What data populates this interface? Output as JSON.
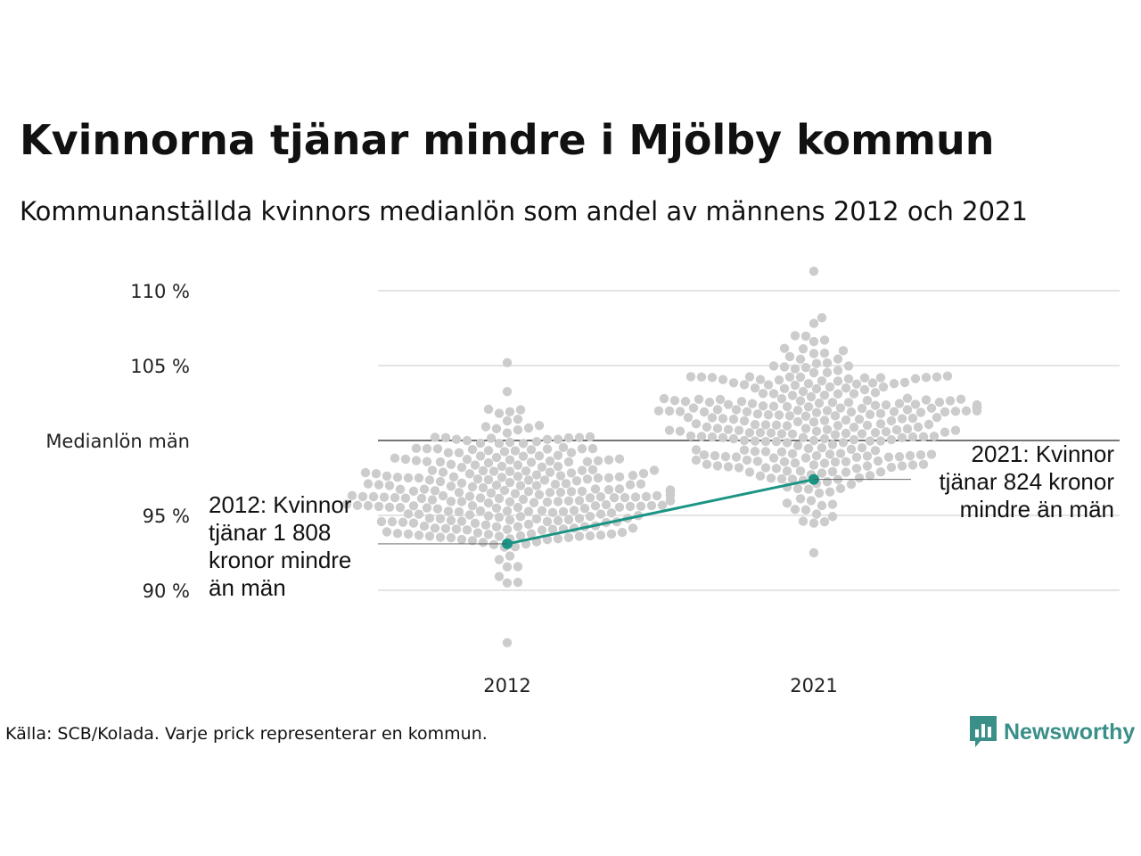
{
  "title": "Kvinnorna tjänar mindre i Mjölby kommun",
  "subtitle": "Kommunanställda kvinnors medianlön som andel av männens 2012 och 2021",
  "source": "Källa: SCB/Kolada. Varje prick representerar en kommun.",
  "logo": {
    "text": "Newsworthy",
    "icon": "newsworthy-bar-chart-icon",
    "color": "#3a8f88"
  },
  "chart_data": {
    "type": "scatter",
    "subtype": "beeswarm",
    "categories": [
      "2012",
      "2021"
    ],
    "ylim": [
      86,
      111.5
    ],
    "yticks": [
      {
        "value": 90,
        "label": "90 %"
      },
      {
        "value": 95,
        "label": "95 %"
      },
      {
        "value": 100,
        "label": "Medianlön män"
      },
      {
        "value": 105,
        "label": "105 %"
      },
      {
        "value": 110,
        "label": "110 %"
      }
    ],
    "grid": true,
    "reference_line": {
      "value": 100,
      "label": "Medianlön män"
    },
    "distributions": [
      {
        "category": "2012",
        "approx_count": 290,
        "median": 96.5,
        "min": 86.5,
        "max": 105.2,
        "spread": 2.3
      },
      {
        "category": "2021",
        "approx_count": 290,
        "median": 101.0,
        "min": 92.5,
        "max": 111.3,
        "spread": 2.6
      }
    ],
    "series": [
      {
        "name": "Mjölby kommun",
        "color": "#1a9484",
        "values": [
          93.1,
          97.4
        ]
      }
    ],
    "dot_color": "#cccccc",
    "annotations": [
      {
        "category": "2012",
        "value": 93.1,
        "lines": [
          "2012: Kvinnor",
          "tjänar 1 808",
          "kronor mindre",
          "än män"
        ]
      },
      {
        "category": "2021",
        "value": 97.4,
        "lines": [
          "2021: Kvinnor",
          "tjänar 824 kronor",
          "mindre än män"
        ]
      }
    ]
  }
}
